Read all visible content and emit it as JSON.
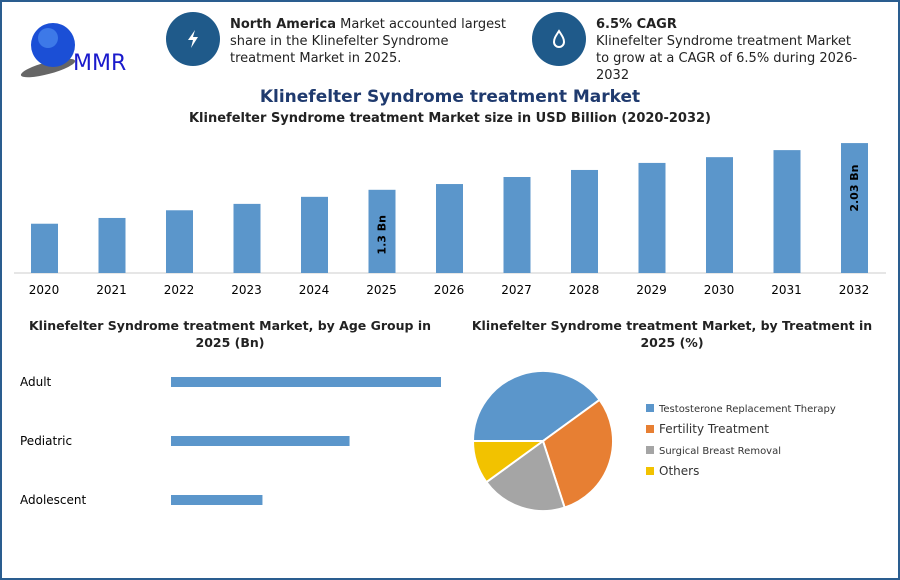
{
  "logo": {
    "text": "MMR"
  },
  "info1": {
    "bold": "North America",
    "text": " Market accounted largest share in the Klinefelter Syndrome treatment Market in 2025.",
    "icon": "lightning-icon"
  },
  "info2": {
    "bold": "6.5% CAGR",
    "text": "Klinefelter Syndrome treatment Market to grow at a CAGR of 6.5% during 2026-2032",
    "icon": "drop-icon"
  },
  "main_title": "Klinefelter Syndrome treatment Market",
  "chart_data": [
    {
      "type": "bar",
      "title": "Klinefelter Syndrome treatment Market size in USD Billion (2020-2032)",
      "categories": [
        "2020",
        "2021",
        "2022",
        "2023",
        "2024",
        "2025",
        "2026",
        "2027",
        "2028",
        "2029",
        "2030",
        "2031",
        "2032"
      ],
      "values": [
        0.77,
        0.86,
        0.98,
        1.08,
        1.19,
        1.3,
        1.39,
        1.5,
        1.61,
        1.72,
        1.81,
        1.92,
        2.03
      ],
      "data_labels": {
        "2025": "1.3 Bn",
        "2032": "2.03 Bn"
      },
      "color": "#5b96cb",
      "grid": false
    },
    {
      "type": "bar",
      "orientation": "horizontal",
      "title": "Klinefelter Syndrome treatment Market, by Age Group in 2025 (Bn)",
      "categories": [
        "Adult",
        "Pediatric",
        "Adolescent"
      ],
      "values": [
        0.62,
        0.41,
        0.21
      ],
      "color": "#5b96cb",
      "grid": false
    },
    {
      "type": "pie",
      "title": "Klinefelter Syndrome treatment Market, by Treatment in 2025 (%)",
      "categories": [
        "Testosterone Replacement Therapy",
        "Fertility Treatment",
        "Surgical Breast Removal",
        "Others"
      ],
      "values": [
        40,
        30,
        20,
        10
      ],
      "colors": [
        "#5b96cb",
        "#e77f33",
        "#a5a5a5",
        "#f2c200"
      ],
      "legend": "right"
    }
  ]
}
